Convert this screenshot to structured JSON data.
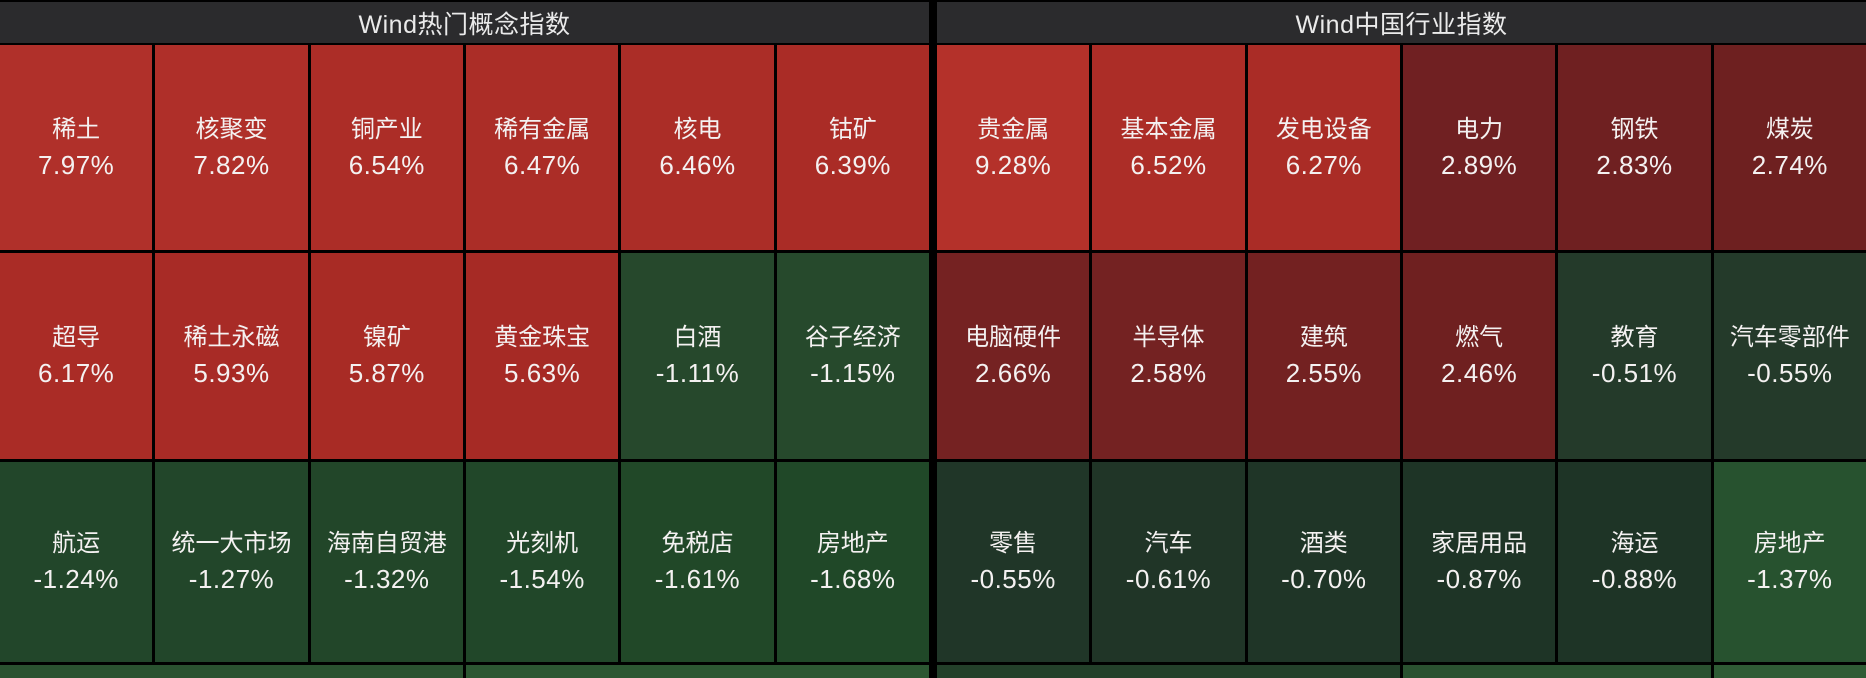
{
  "theme": {
    "grid_line": "#000000",
    "header_bg": "#2b2b2d",
    "header_text": "#eaeaea",
    "cell_text": "#f4f1f1",
    "positive_strong": "#b0302a",
    "positive_weak": "#6e2020",
    "negative_weak": "#1e3426",
    "negative_strong": "#26482c"
  },
  "chart_data": [
    {
      "type": "heatmap",
      "title": "Wind热门概念指数",
      "legend_note": "red = gain, green = loss; brightness scales with magnitude",
      "cells": [
        {
          "label": "稀土",
          "value": 7.97,
          "display": "7.97%",
          "color": "#b0302a"
        },
        {
          "label": "核聚变",
          "value": 7.82,
          "display": "7.82%",
          "color": "#af2f29"
        },
        {
          "label": "铜产业",
          "value": 6.54,
          "display": "6.54%",
          "color": "#ac2d27"
        },
        {
          "label": "稀有金属",
          "value": 6.47,
          "display": "6.47%",
          "color": "#ab2d27"
        },
        {
          "label": "核电",
          "value": 6.46,
          "display": "6.46%",
          "color": "#ab2d27"
        },
        {
          "label": "钴矿",
          "value": 6.39,
          "display": "6.39%",
          "color": "#aa2c26"
        },
        {
          "label": "超导",
          "value": 6.17,
          "display": "6.17%",
          "color": "#aa2c26"
        },
        {
          "label": "稀土永磁",
          "value": 5.93,
          "display": "5.93%",
          "color": "#a82b26"
        },
        {
          "label": "镍矿",
          "value": 5.87,
          "display": "5.87%",
          "color": "#a82b25"
        },
        {
          "label": "黄金珠宝",
          "value": 5.63,
          "display": "5.63%",
          "color": "#a62a25"
        },
        {
          "label": "白酒",
          "value": -1.11,
          "display": "-1.11%",
          "color": "#26482c"
        },
        {
          "label": "谷子经济",
          "value": -1.15,
          "display": "-1.15%",
          "color": "#26492c"
        },
        {
          "label": "航运",
          "value": -1.24,
          "display": "-1.24%",
          "color": "#22462a"
        },
        {
          "label": "统一大市场",
          "value": -1.27,
          "display": "-1.27%",
          "color": "#22462a"
        },
        {
          "label": "海南自贸港",
          "value": -1.32,
          "display": "-1.32%",
          "color": "#224629"
        },
        {
          "label": "光刻机",
          "value": -1.54,
          "display": "-1.54%",
          "color": "#214729"
        },
        {
          "label": "免税店",
          "value": -1.61,
          "display": "-1.61%",
          "color": "#214828"
        },
        {
          "label": "房地产",
          "value": -1.68,
          "display": "-1.68%",
          "color": "#204828"
        }
      ],
      "partial_row": [
        {
          "span": 3,
          "color": "#2a5230"
        },
        {
          "span": 3,
          "color": "#2c5732"
        }
      ]
    },
    {
      "type": "heatmap",
      "title": "Wind中国行业指数",
      "legend_note": "red = gain, green = loss; brightness scales with magnitude",
      "cells": [
        {
          "label": "贵金属",
          "value": 9.28,
          "display": "9.28%",
          "color": "#b4312a"
        },
        {
          "label": "基本金属",
          "value": 6.52,
          "display": "6.52%",
          "color": "#ac2d27"
        },
        {
          "label": "发电设备",
          "value": 6.27,
          "display": "6.27%",
          "color": "#aa2c26"
        },
        {
          "label": "电力",
          "value": 2.89,
          "display": "2.89%",
          "color": "#702022"
        },
        {
          "label": "钢铁",
          "value": 2.83,
          "display": "2.83%",
          "color": "#6f2021"
        },
        {
          "label": "煤炭",
          "value": 2.74,
          "display": "2.74%",
          "color": "#6e2020"
        },
        {
          "label": "电脑硬件",
          "value": 2.66,
          "display": "2.66%",
          "color": "#752222"
        },
        {
          "label": "半导体",
          "value": 2.58,
          "display": "2.58%",
          "color": "#742222"
        },
        {
          "label": "建筑",
          "value": 2.55,
          "display": "2.55%",
          "color": "#732121"
        },
        {
          "label": "燃气",
          "value": 2.46,
          "display": "2.46%",
          "color": "#6f2020"
        },
        {
          "label": "教育",
          "value": -0.51,
          "display": "-0.51%",
          "color": "#243a2a"
        },
        {
          "label": "汽车零部件",
          "value": -0.55,
          "display": "-0.55%",
          "color": "#243a2a"
        },
        {
          "label": "零售",
          "value": -0.55,
          "display": "-0.55%",
          "color": "#203628"
        },
        {
          "label": "汽车",
          "value": -0.61,
          "display": "-0.61%",
          "color": "#203527"
        },
        {
          "label": "酒类",
          "value": -0.7,
          "display": "-0.70%",
          "color": "#1f3527"
        },
        {
          "label": "家居用品",
          "value": -0.87,
          "display": "-0.87%",
          "color": "#1e3426"
        },
        {
          "label": "海运",
          "value": -0.88,
          "display": "-0.88%",
          "color": "#1e3426"
        },
        {
          "label": "房地产",
          "value": -1.37,
          "display": "-1.37%",
          "color": "#27522f"
        }
      ],
      "partial_row": [
        {
          "span": 3,
          "color": "#23402a"
        },
        {
          "span": 2,
          "color": "#2a5130"
        },
        {
          "span": 1,
          "color": "#2f5c35"
        }
      ]
    }
  ]
}
